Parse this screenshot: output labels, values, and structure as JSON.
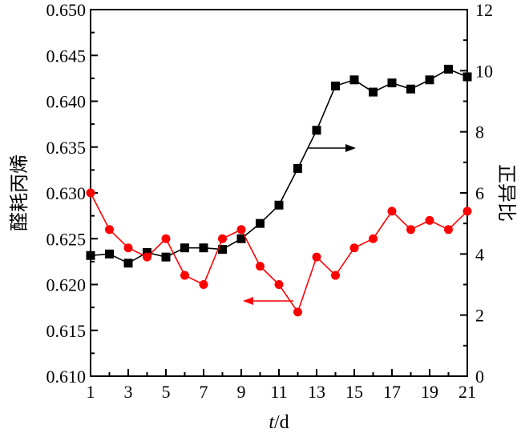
{
  "chart_data": {
    "type": "line",
    "x": [
      1,
      2,
      3,
      4,
      5,
      6,
      7,
      8,
      9,
      10,
      11,
      12,
      13,
      14,
      15,
      16,
      17,
      18,
      19,
      20,
      21
    ],
    "xticks": [
      "1",
      "3",
      "5",
      "7",
      "9",
      "11",
      "13",
      "15",
      "17",
      "19",
      "21"
    ],
    "xlim": [
      1,
      21
    ],
    "xlabel_italic": "t",
    "xlabel_unit": "/d",
    "ylabel_left": "醛耗丙烯",
    "ylim_left": [
      0.61,
      0.65
    ],
    "yticks_left": [
      "0.610",
      "0.615",
      "0.620",
      "0.625",
      "0.630",
      "0.635",
      "0.640",
      "0.645",
      "0.650"
    ],
    "ylabel_right": "正异比",
    "ylim_right": [
      0,
      12
    ],
    "yticks_right": [
      "0",
      "2",
      "4",
      "6",
      "8",
      "10",
      "12"
    ],
    "series": [
      {
        "axis": "right",
        "color": "#000000",
        "marker": "square",
        "values": [
          3.95,
          4.0,
          3.7,
          4.05,
          3.9,
          4.2,
          4.2,
          4.15,
          4.5,
          5.0,
          5.6,
          6.8,
          8.05,
          9.5,
          9.7,
          9.3,
          9.6,
          9.4,
          9.7,
          10.05,
          9.8
        ]
      },
      {
        "axis": "left",
        "color": "#ff0000",
        "marker": "circle",
        "values": [
          0.63,
          0.626,
          0.624,
          0.623,
          0.625,
          0.621,
          0.62,
          0.625,
          0.626,
          0.622,
          0.62,
          0.617,
          0.623,
          0.621,
          0.624,
          0.625,
          0.628,
          0.626,
          0.627,
          0.626,
          0.628
        ]
      }
    ],
    "annotations": [
      {
        "type": "arrow",
        "color": "#000000",
        "direction": "right",
        "points_to": "right-axis"
      },
      {
        "type": "arrow",
        "color": "#ff0000",
        "direction": "left",
        "points_to": "left-axis"
      }
    ],
    "grid": false,
    "legend": "none"
  }
}
